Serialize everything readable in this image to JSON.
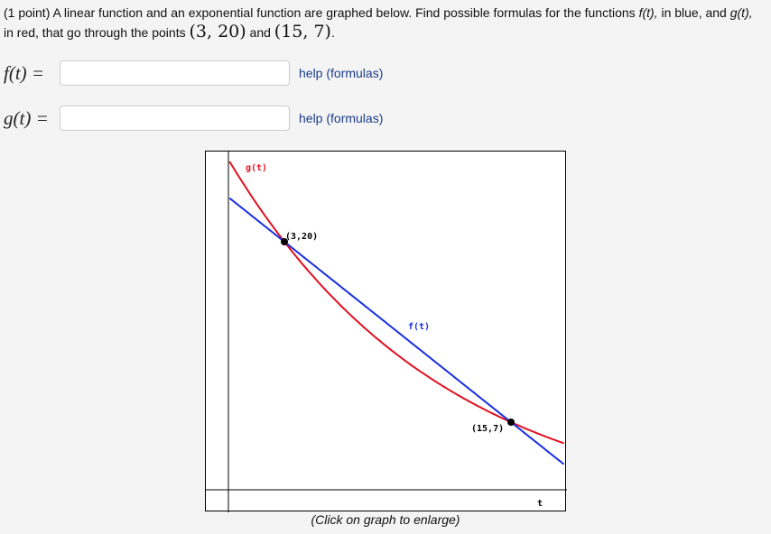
{
  "problem": {
    "prefix": "(1 point) A linear function and an exponential function are graphed below. Find possible formulas for the functions ",
    "f_name": "f(t),",
    "mid1": " in blue, and ",
    "g_name": "g(t),",
    "line2_pre": "in red, that go through the points ",
    "point1": "(3, 20)",
    "and": " and ",
    "point2": "(15, 7)",
    "end": "."
  },
  "answers": [
    {
      "label": "f(t) =",
      "value": "",
      "placeholder": "",
      "help": "help (formulas)"
    },
    {
      "label": "g(t) =",
      "value": "",
      "placeholder": "",
      "help": "help (formulas)"
    }
  ],
  "graph": {
    "caption": "(Click on graph to enlarge)",
    "colors": {
      "f": "#1a2fe0",
      "g": "#e01020",
      "axis": "#000000"
    },
    "labels": {
      "g": "g(t)",
      "f": "f(t)",
      "p1": "(3,20)",
      "p2": "(15,7)",
      "t_axis": "t"
    }
  },
  "chart_data": {
    "type": "line",
    "title": "",
    "xlabel": "t",
    "ylabel": "",
    "series": [
      {
        "name": "f(t)",
        "kind": "linear",
        "color": "#1a2fe0",
        "points": [
          [
            3,
            20
          ],
          [
            15,
            7
          ]
        ]
      },
      {
        "name": "g(t)",
        "kind": "exponential",
        "color": "#e01020",
        "points": [
          [
            3,
            20
          ],
          [
            15,
            7
          ]
        ]
      }
    ],
    "annotations": [
      "(3,20)",
      "(15,7)"
    ],
    "grid": false
  }
}
